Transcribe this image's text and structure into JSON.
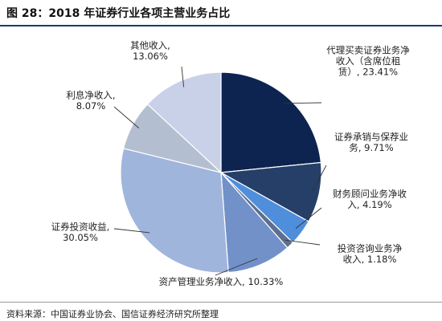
{
  "figure": {
    "title": "图 28：2018 年证券行业各项主营业务占比",
    "source": "资料来源：中国证券业协会、国信证券经济研究所整理"
  },
  "chart_data": {
    "type": "pie",
    "start_angle_deg": 0,
    "direction": "clockwise",
    "slices": [
      {
        "label_lines": [
          "代理买卖证券业务净",
          "收入（含席位租",
          "赁）, 23.41%"
        ],
        "value": 23.41,
        "color": "#0d2451"
      },
      {
        "label_lines": [
          "证券承销与保荐业",
          "务, 9.71%"
        ],
        "value": 9.71,
        "color": "#253f68"
      },
      {
        "label_lines": [
          "财务顾问业务净收",
          "入, 4.19%"
        ],
        "value": 4.19,
        "color": "#4f8edb"
      },
      {
        "label_lines": [
          "投资咨询业务净",
          "收入, 1.18%"
        ],
        "value": 1.18,
        "color": "#5d6f8e"
      },
      {
        "label_lines": [
          "资产管理业务净收入, 10.33%"
        ],
        "value": 10.33,
        "color": "#7291c9"
      },
      {
        "label_lines": [
          "证券投资收益,",
          "30.05%"
        ],
        "value": 30.05,
        "color": "#a0b5dc"
      },
      {
        "label_lines": [
          "利息净收入,",
          "8.07%"
        ],
        "value": 8.07,
        "color": "#b3bfd1"
      },
      {
        "label_lines": [
          "其他收入,",
          "13.06%"
        ],
        "value": 13.06,
        "color": "#c8d1e8"
      }
    ]
  }
}
